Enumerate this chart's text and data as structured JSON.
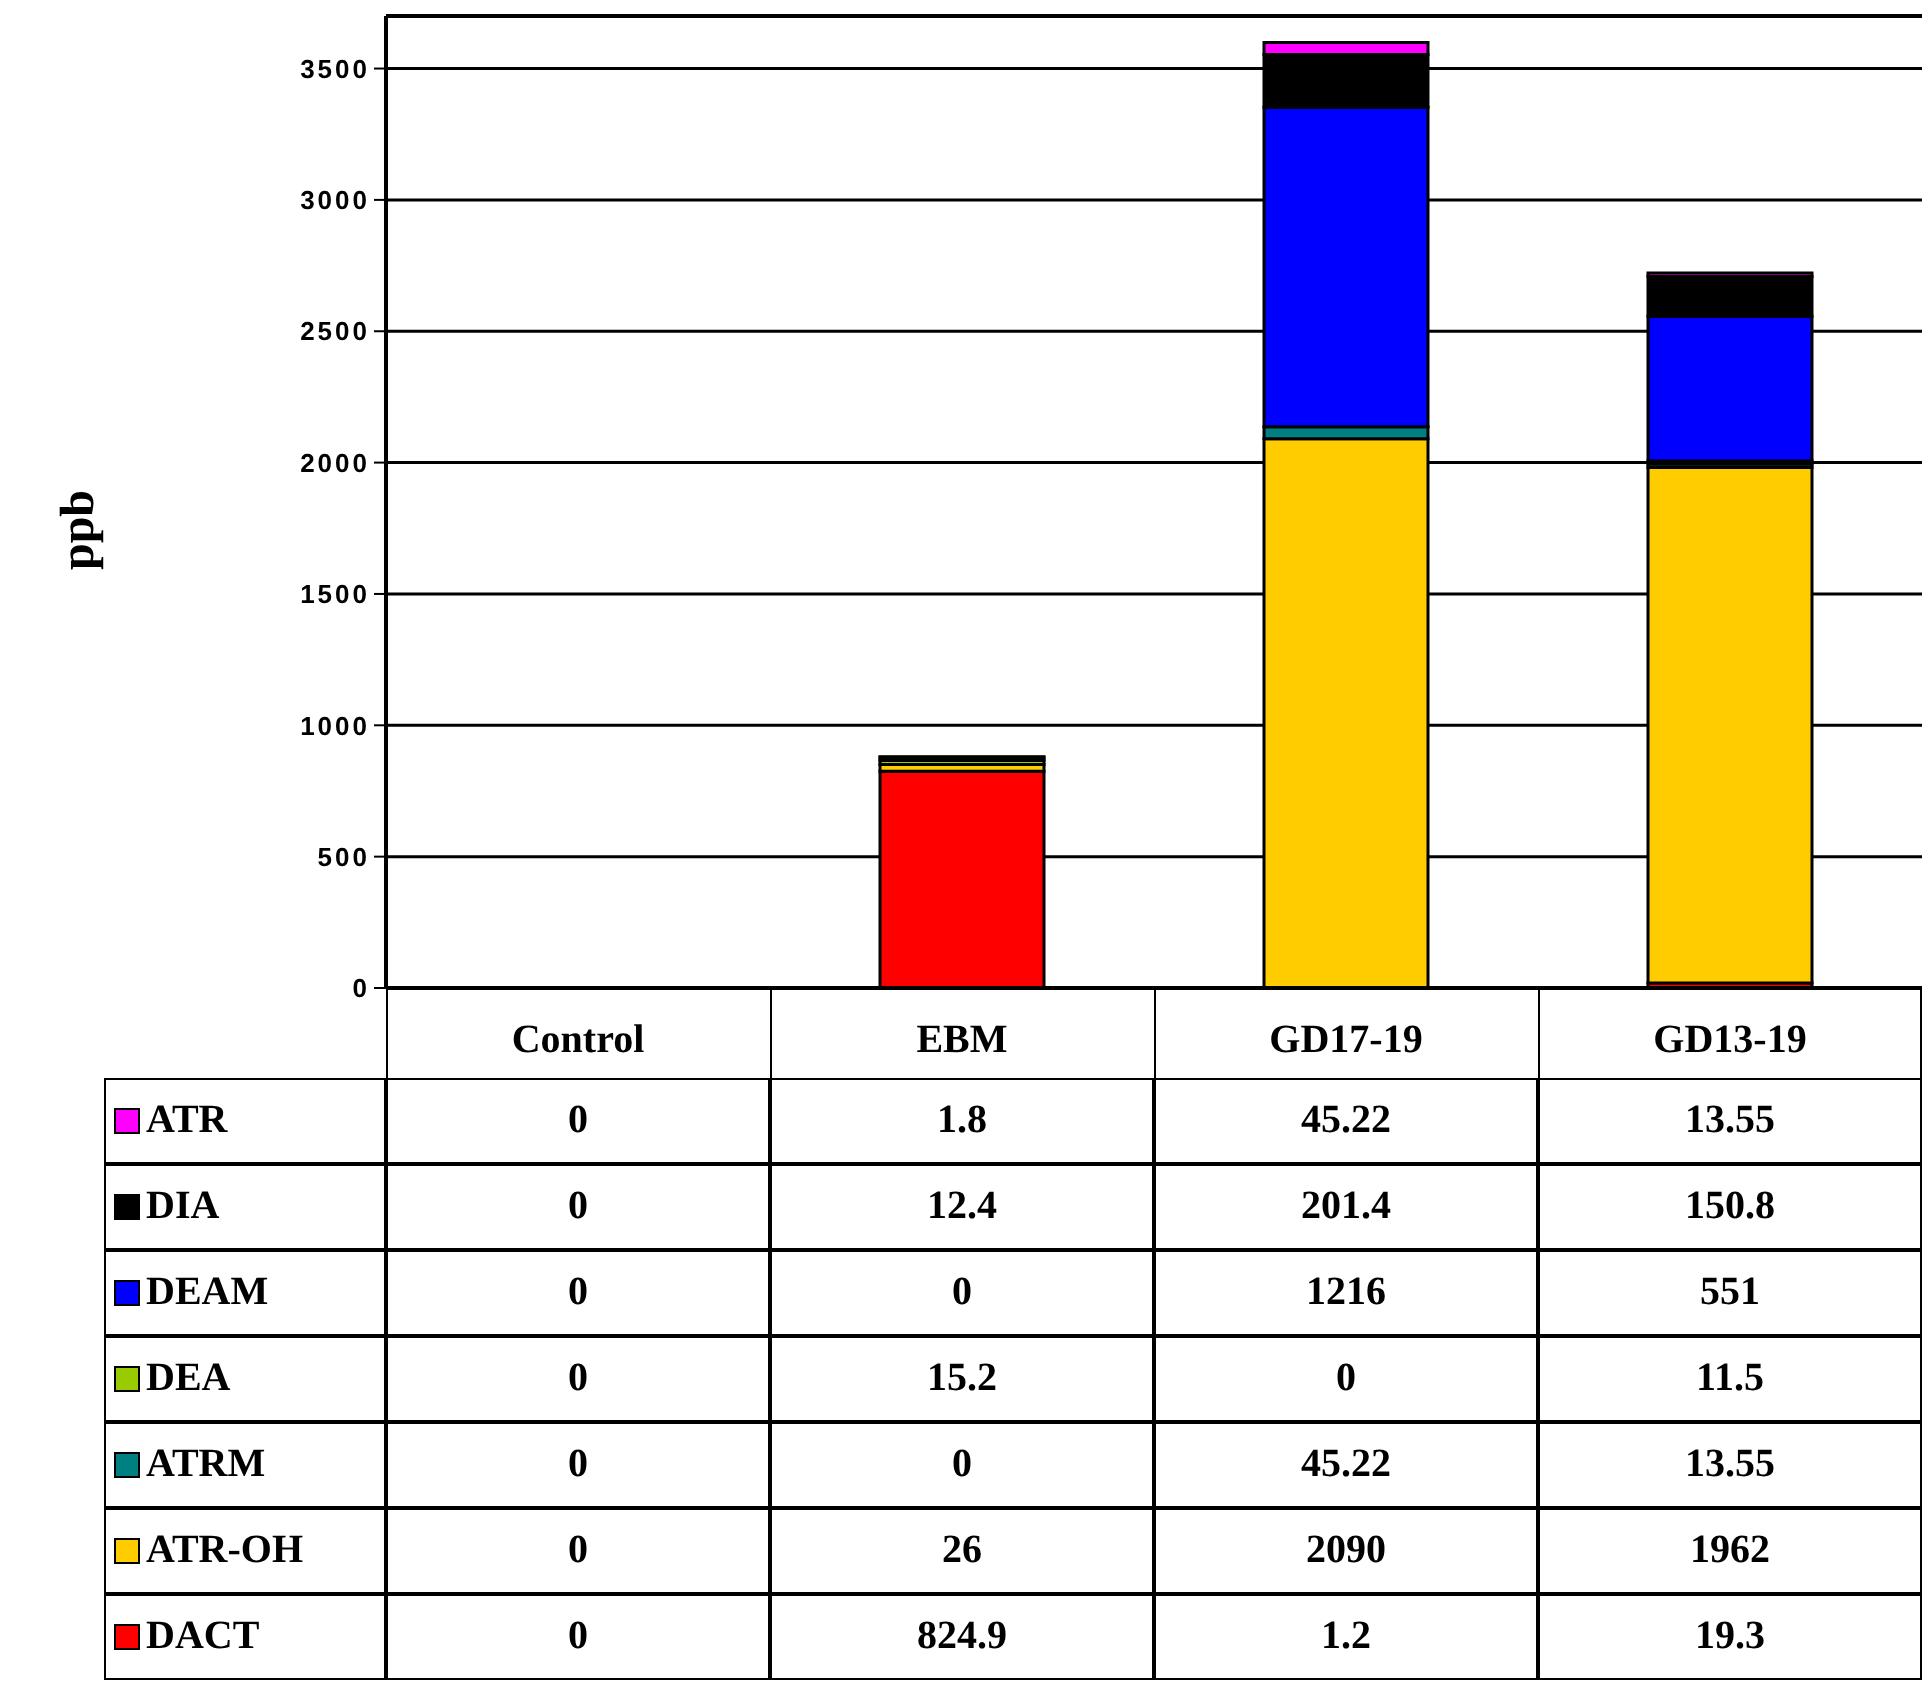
{
  "chart_data": {
    "type": "bar",
    "stacked": true,
    "ylabel": "ppb",
    "categories": [
      "Control",
      "EBM",
      "GD17-19",
      "GD13-19"
    ],
    "series": [
      {
        "name": "DACT",
        "color": "#ff0000",
        "values": [
          0,
          824.9,
          1.2,
          19.3
        ]
      },
      {
        "name": "ATR-OH",
        "color": "#ffcc00",
        "values": [
          0,
          26,
          2090,
          1962
        ]
      },
      {
        "name": "ATRM",
        "color": "#008080",
        "values": [
          0,
          0,
          45.22,
          13.55
        ]
      },
      {
        "name": "DEA",
        "color": "#99cc00",
        "values": [
          0,
          15.2,
          0,
          11.5
        ]
      },
      {
        "name": "DEAM",
        "color": "#0000ff",
        "values": [
          0,
          0,
          1216,
          551
        ]
      },
      {
        "name": "DIA",
        "color": "#000000",
        "values": [
          0,
          12.4,
          201.4,
          150.8
        ]
      },
      {
        "name": "ATR",
        "color": "#ff00ff",
        "values": [
          0,
          1.8,
          45.22,
          13.55
        ]
      }
    ],
    "ylim": [
      0,
      3700
    ],
    "yticks": [
      0,
      500,
      1000,
      1500,
      2000,
      2500,
      3000,
      3500
    ],
    "grid": "y",
    "data_labels": true,
    "legend": "bottom left"
  }
}
